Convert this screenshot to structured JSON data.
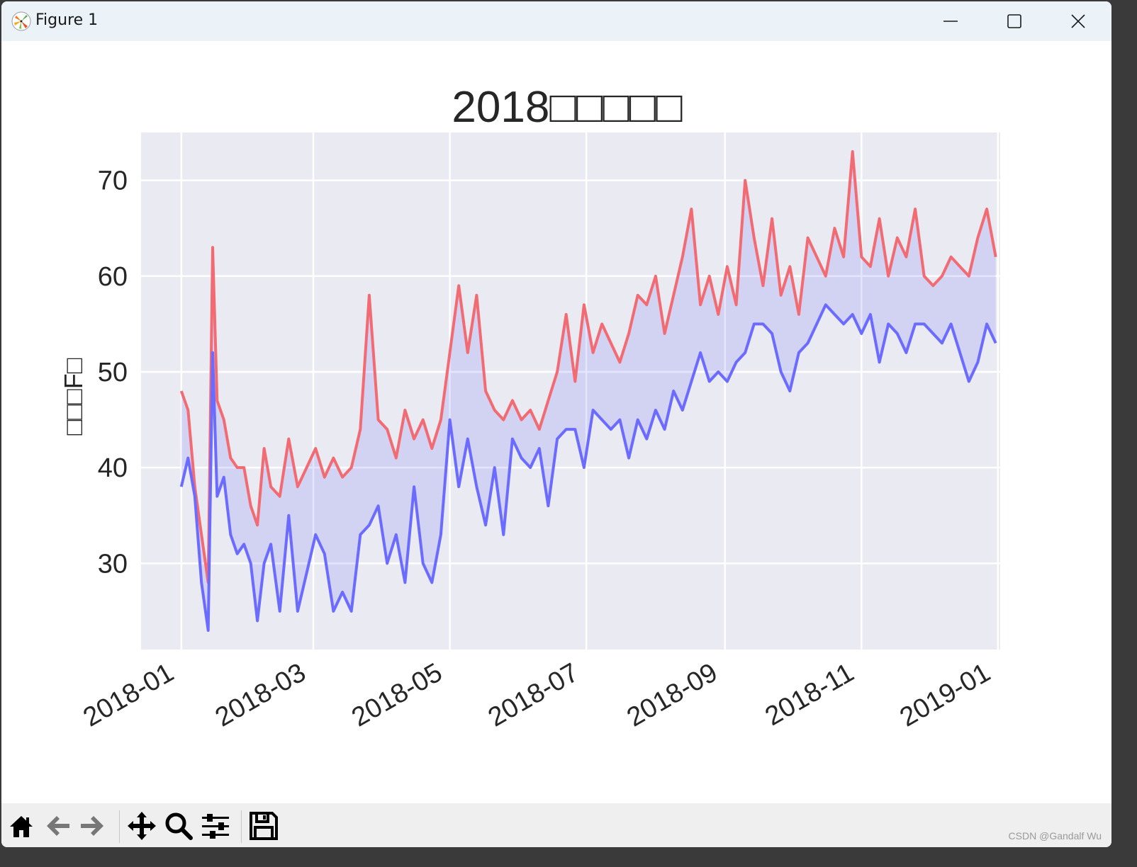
{
  "window": {
    "title": "Figure 1",
    "controls": {
      "minimize": "minimize-icon",
      "maximize": "maximize-icon",
      "close": "close-icon"
    }
  },
  "toolbar": {
    "buttons": [
      {
        "name": "home-button",
        "icon": "home-icon"
      },
      {
        "name": "back-button",
        "icon": "arrow-left-icon"
      },
      {
        "name": "forward-button",
        "icon": "arrow-right-icon"
      },
      {
        "name": "pan-button",
        "icon": "move-icon"
      },
      {
        "name": "zoom-button",
        "icon": "magnifier-icon"
      },
      {
        "name": "configure-subplots-button",
        "icon": "sliders-icon"
      },
      {
        "name": "save-button",
        "icon": "floppy-disk-icon"
      }
    ]
  },
  "watermark": "CSDN @Gandalf Wu",
  "colors": {
    "high_line": "#f26b73",
    "low_line": "#6b6bff",
    "fill": "#d2d4f2",
    "plot_bg": "#eaeaf2",
    "grid": "#ffffff"
  },
  "chart_data": {
    "type": "line",
    "title": "2018□□□□□",
    "xlabel": "",
    "ylabel": "□□□F□",
    "ylim": [
      21,
      75
    ],
    "yticks": [
      30,
      40,
      50,
      60,
      70
    ],
    "xticks": [
      "2018-01",
      "2018-03",
      "2018-05",
      "2018-07",
      "2018-09",
      "2018-11",
      "2019-01"
    ],
    "xlim_days": [
      -18,
      366
    ],
    "grid": true,
    "legend": "none",
    "fill_between": {
      "between": [
        "high",
        "low"
      ],
      "color": "#0000ff",
      "alpha": 0.1
    },
    "x_day_of_year": [
      0,
      3,
      6,
      9,
      12,
      14,
      16,
      19,
      22,
      25,
      28,
      31,
      34,
      37,
      40,
      44,
      48,
      52,
      56,
      60,
      64,
      68,
      72,
      76,
      80,
      84,
      88,
      92,
      96,
      100,
      104,
      108,
      112,
      116,
      120,
      124,
      128,
      132,
      136,
      140,
      144,
      148,
      152,
      156,
      160,
      164,
      168,
      172,
      176,
      180,
      184,
      188,
      192,
      196,
      200,
      204,
      208,
      212,
      216,
      220,
      224,
      228,
      232,
      236,
      240,
      244,
      248,
      252,
      256,
      260,
      264,
      268,
      272,
      276,
      280,
      284,
      288,
      292,
      296,
      300,
      304,
      308,
      312,
      316,
      320,
      324,
      328,
      332,
      336,
      340,
      344,
      348,
      352,
      356,
      360,
      364
    ],
    "series": [
      {
        "name": "high",
        "color": "#f26b73",
        "values": [
          48,
          46,
          38,
          33,
          28,
          63,
          47,
          45,
          41,
          40,
          40,
          36,
          34,
          42,
          38,
          37,
          43,
          38,
          40,
          42,
          39,
          41,
          39,
          40,
          44,
          58,
          45,
          44,
          41,
          46,
          43,
          45,
          42,
          45,
          52,
          59,
          52,
          58,
          48,
          46,
          45,
          47,
          45,
          46,
          44,
          47,
          50,
          56,
          49,
          57,
          52,
          55,
          53,
          51,
          54,
          58,
          57,
          60,
          54,
          58,
          62,
          67,
          57,
          60,
          56,
          61,
          57,
          70,
          64,
          59,
          66,
          58,
          61,
          56,
          64,
          62,
          60,
          65,
          62,
          73,
          62,
          61,
          66,
          60,
          64,
          62,
          67,
          60,
          59,
          60,
          62,
          61,
          60,
          64,
          67,
          62
        ]
      },
      {
        "name": "low",
        "color": "#6b6bff",
        "values": [
          38,
          41,
          37,
          28,
          23,
          52,
          37,
          39,
          33,
          31,
          32,
          30,
          24,
          30,
          32,
          25,
          35,
          25,
          29,
          33,
          31,
          25,
          27,
          25,
          33,
          34,
          36,
          30,
          33,
          28,
          38,
          30,
          28,
          33,
          45,
          38,
          43,
          38,
          34,
          40,
          33,
          43,
          41,
          40,
          42,
          36,
          43,
          44,
          44,
          40,
          46,
          45,
          44,
          45,
          41,
          45,
          43,
          46,
          44,
          48,
          46,
          49,
          52,
          49,
          50,
          49,
          51,
          52,
          55,
          55,
          54,
          50,
          48,
          52,
          53,
          55,
          57,
          56,
          55,
          56,
          54,
          56,
          51,
          55,
          54,
          52,
          55,
          55,
          54,
          53,
          55,
          52,
          49,
          51,
          55,
          53
        ]
      }
    ]
  }
}
